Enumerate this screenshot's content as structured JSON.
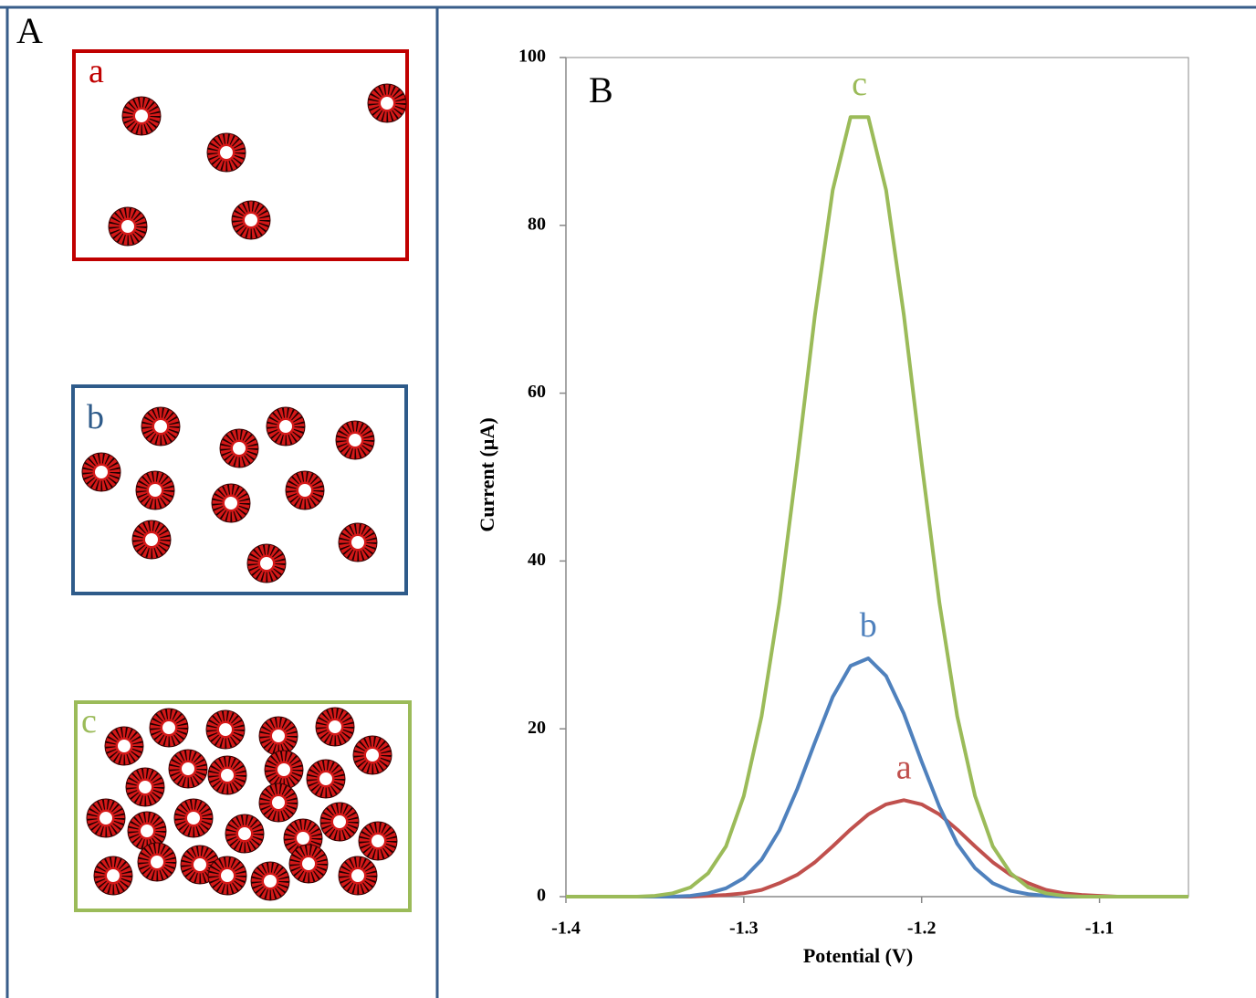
{
  "panel_a": {
    "label": "A",
    "boxes": [
      {
        "label": "a"
      },
      {
        "label": "b"
      },
      {
        "label": "c"
      }
    ]
  },
  "chart_data": {
    "type": "line",
    "label": "B",
    "x_label": "Potential (V)",
    "y_label": "Current (µA)",
    "x": [
      -1.4,
      -1.39,
      -1.38,
      -1.37,
      -1.36,
      -1.35,
      -1.34,
      -1.33,
      -1.32,
      -1.31,
      -1.3,
      -1.29,
      -1.28,
      -1.27,
      -1.26,
      -1.25,
      -1.24,
      -1.23,
      -1.22,
      -1.21,
      -1.2,
      -1.19,
      -1.18,
      -1.17,
      -1.16,
      -1.15,
      -1.14,
      -1.13,
      -1.12,
      -1.11,
      -1.1,
      -1.09,
      -1.08,
      -1.07,
      -1.06,
      -1.05
    ],
    "series": [
      {
        "name": "a",
        "color": "#c0504d",
        "values": [
          0,
          0,
          0,
          0,
          0,
          0,
          0,
          0,
          0.1,
          0.2,
          0.4,
          0.8,
          1.6,
          2.6,
          4.1,
          6.0,
          8.0,
          9.8,
          11.0,
          11.5,
          11.0,
          9.8,
          8.0,
          6.0,
          4.1,
          2.6,
          1.6,
          0.8,
          0.4,
          0.2,
          0.1,
          0,
          0,
          0,
          0,
          0
        ]
      },
      {
        "name": "b",
        "color": "#4f81bd",
        "values": [
          0,
          0,
          0,
          0,
          0,
          0,
          0,
          0.1,
          0.4,
          1.0,
          2.2,
          4.4,
          7.9,
          12.8,
          18.4,
          23.8,
          27.5,
          28.4,
          26.3,
          21.8,
          16.1,
          10.7,
          6.3,
          3.4,
          1.6,
          0.7,
          0.3,
          0.1,
          0,
          0,
          0,
          0,
          0,
          0,
          0,
          0
        ]
      },
      {
        "name": "c",
        "color": "#9bbb59",
        "values": [
          0,
          0,
          0,
          0,
          0,
          0.1,
          0.4,
          1.1,
          2.8,
          6.0,
          12.0,
          21.5,
          35.0,
          51.7,
          69.3,
          84.2,
          92.9,
          92.9,
          84.2,
          69.3,
          51.7,
          35.0,
          21.5,
          12.0,
          6.0,
          2.8,
          1.1,
          0.4,
          0.1,
          0,
          0,
          0,
          0,
          0,
          0,
          0
        ]
      }
    ],
    "xlim": [
      -1.4,
      -1.05
    ],
    "xticks": [
      -1.4,
      -1.3,
      -1.2,
      -1.1
    ],
    "ylim": [
      0,
      100
    ],
    "yticks": [
      0,
      20,
      40,
      60,
      80,
      100
    ],
    "grid": false
  }
}
